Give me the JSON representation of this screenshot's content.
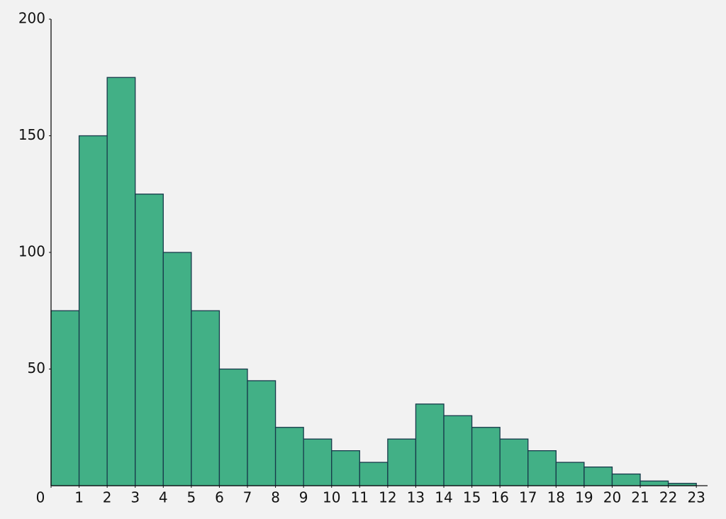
{
  "chart_data": {
    "type": "histogram",
    "bins": [
      0,
      1,
      2,
      3,
      4,
      5,
      6,
      7,
      8,
      9,
      10,
      11,
      12,
      13,
      14,
      15,
      16,
      17,
      18,
      19,
      20,
      21,
      22,
      23
    ],
    "values": [
      75,
      150,
      175,
      125,
      100,
      75,
      50,
      45,
      25,
      20,
      15,
      10,
      20,
      35,
      30,
      25,
      20,
      15,
      10,
      8,
      5,
      2,
      1
    ],
    "color": "#42b086",
    "edgecolor": "#17394a",
    "xlim": [
      0,
      23.4
    ],
    "xticks": [
      0,
      1,
      2,
      3,
      4,
      5,
      6,
      7,
      8,
      9,
      10,
      11,
      12,
      13,
      14,
      15,
      16,
      17,
      18,
      19,
      20,
      21,
      22,
      23
    ],
    "ylim": [
      0,
      200
    ],
    "yticks": [
      50,
      100,
      150,
      200
    ],
    "grid": false
  }
}
